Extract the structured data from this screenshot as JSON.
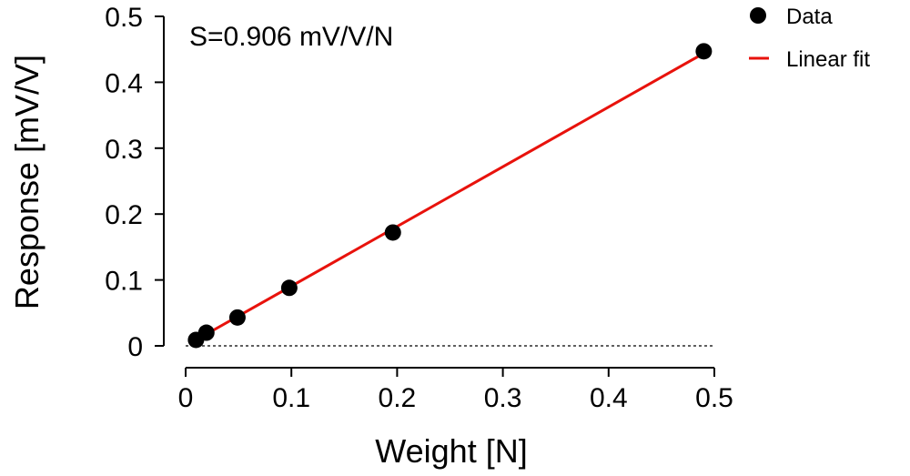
{
  "chart_data": {
    "type": "scatter",
    "title": "",
    "xlabel": "Weight [N]",
    "ylabel": "Response [mV/V]",
    "xlim": [
      0,
      0.5
    ],
    "ylim": [
      0,
      0.5
    ],
    "xticks": [
      0,
      0.1,
      0.2,
      0.3,
      0.4,
      0.5
    ],
    "xtick_labels": [
      "0",
      "0.1",
      "0.2",
      "0.3",
      "0.4",
      "0.5"
    ],
    "yticks": [
      0,
      0.1,
      0.2,
      0.3,
      0.4,
      0.5
    ],
    "ytick_labels": [
      "0",
      "0.1",
      "0.2",
      "0.3",
      "0.4",
      "0.5"
    ],
    "grid": false,
    "zero_line": {
      "y": 0,
      "style": "dotted"
    },
    "annotation": "S=0.906 mV/V/N",
    "legend_position": "top-right",
    "series": [
      {
        "name": "Data",
        "kind": "points",
        "color": "#000000",
        "x": [
          0.0098,
          0.0196,
          0.049,
          0.098,
          0.196,
          0.49
        ],
        "y": [
          0.009,
          0.02,
          0.043,
          0.088,
          0.172,
          0.447
        ]
      },
      {
        "name": "Linear fit",
        "kind": "line",
        "color": "#e8120c",
        "slope": 0.906,
        "x": [
          0.0098,
          0.49
        ],
        "y": [
          0.0089,
          0.444
        ]
      }
    ]
  }
}
